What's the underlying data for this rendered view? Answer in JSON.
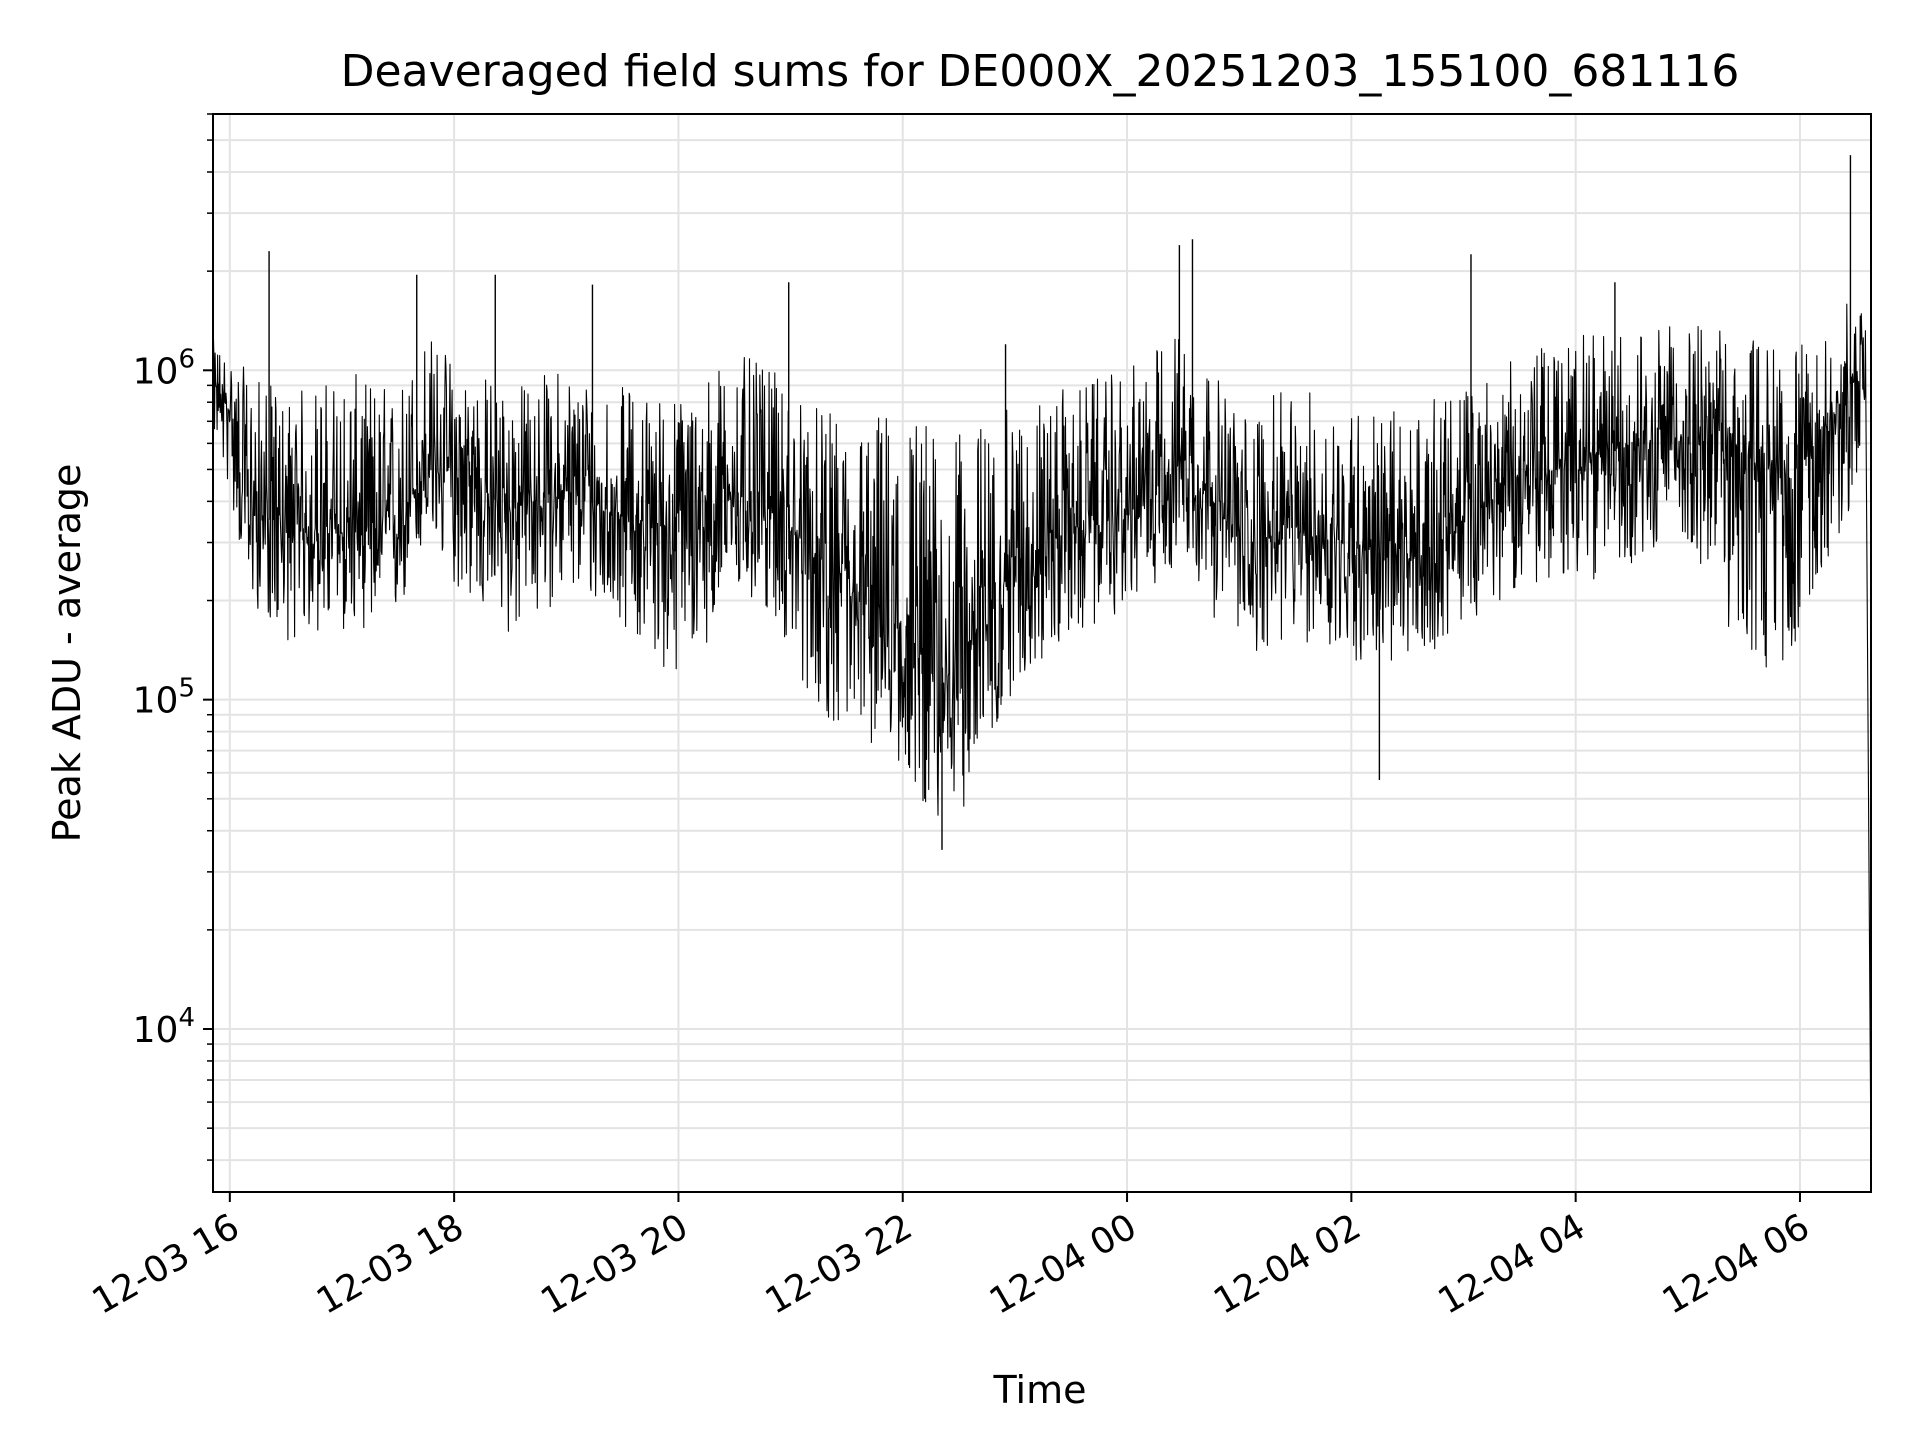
{
  "chart_data": {
    "type": "line",
    "title": "Deaveraged field sums for DE000X_20251203_155100_681116",
    "xlabel": "Time",
    "ylabel": "Peak ADU - average",
    "yscale": "log",
    "ylim": [
      3200,
      6000000
    ],
    "xlim": [
      "2025-12-03 15:51",
      "2025-12-04 06:38"
    ],
    "grid": true,
    "line_color": "#000000",
    "grid_color": "#e3e3e3",
    "x_ticks": [
      {
        "label": "12-03 16",
        "t": "2025-12-03 16:00"
      },
      {
        "label": "12-03 18",
        "t": "2025-12-03 18:00"
      },
      {
        "label": "12-03 20",
        "t": "2025-12-03 20:00"
      },
      {
        "label": "12-03 22",
        "t": "2025-12-03 22:00"
      },
      {
        "label": "12-04 00",
        "t": "2025-12-04 00:00"
      },
      {
        "label": "12-04 02",
        "t": "2025-12-04 02:00"
      },
      {
        "label": "12-04 04",
        "t": "2025-12-04 04:00"
      },
      {
        "label": "12-04 06",
        "t": "2025-12-04 06:00"
      }
    ],
    "y_ticks": [
      {
        "base": "10",
        "exp": "4",
        "value": 10000
      },
      {
        "base": "10",
        "exp": "5",
        "value": 100000
      },
      {
        "base": "10",
        "exp": "6",
        "value": 1000000
      }
    ],
    "series": [
      {
        "values_description_note": "",
        "x": [
          "2025-12-03 15:51",
          "2025-12-03 16:00",
          "2025-12-03 16:10",
          "2025-12-03 16:30",
          "2025-12-03 17:00",
          "2025-12-03 17:30",
          "2025-12-03 17:45",
          "2025-12-03 18:00",
          "2025-12-03 18:30",
          "2025-12-03 19:00",
          "2025-12-03 19:30",
          "2025-12-03 20:00",
          "2025-12-03 20:30",
          "2025-12-03 20:50",
          "2025-12-03 21:10",
          "2025-12-03 21:30",
          "2025-12-03 21:50",
          "2025-12-03 22:10",
          "2025-12-03 22:20",
          "2025-12-03 22:40",
          "2025-12-03 23:00",
          "2025-12-03 23:30",
          "2025-12-04 00:00",
          "2025-12-04 00:30",
          "2025-12-04 01:00",
          "2025-12-04 01:30",
          "2025-12-04 02:00",
          "2025-12-04 02:30",
          "2025-12-04 03:00",
          "2025-12-04 03:30",
          "2025-12-04 04:00",
          "2025-12-04 04:30",
          "2025-12-04 05:00",
          "2025-12-04 05:30",
          "2025-12-04 05:50",
          "2025-12-04 06:10",
          "2025-12-04 06:25",
          "2025-12-04 06:35",
          "2025-12-04 06:38"
        ],
        "median": [
          900000,
          750000,
          380000,
          330000,
          320000,
          330000,
          520000,
          480000,
          380000,
          430000,
          360000,
          330000,
          420000,
          380000,
          280000,
          200000,
          180000,
          130000,
          110000,
          160000,
          260000,
          330000,
          360000,
          560000,
          300000,
          320000,
          300000,
          260000,
          340000,
          480000,
          500000,
          600000,
          620000,
          560000,
          470000,
          580000,
          900000,
          950000,
          3800
        ],
        "low": [
          650000,
          420000,
          200000,
          150000,
          160000,
          170000,
          300000,
          220000,
          150000,
          210000,
          170000,
          110000,
          200000,
          180000,
          100000,
          75000,
          70000,
          50000,
          36000,
          55000,
          110000,
          150000,
          190000,
          260000,
          130000,
          150000,
          130000,
          120000,
          170000,
          220000,
          220000,
          260000,
          300000,
          130000,
          110000,
          240000,
          320000,
          650000,
          3800
        ],
        "high": [
          1250000,
          1100000,
          1000000,
          850000,
          1000000,
          900000,
          1350000,
          1100000,
          900000,
          1050000,
          900000,
          850000,
          1150000,
          1000000,
          800000,
          700000,
          780000,
          800000,
          600000,
          700000,
          780000,
          900000,
          1000000,
          1400000,
          750000,
          900000,
          800000,
          750000,
          900000,
          1100000,
          1300000,
          1300000,
          1400000,
          1300000,
          1200000,
          1200000,
          1600000,
          1500000,
          3800
        ],
        "spikes": [
          {
            "t": "2025-12-03 16:21",
            "v": 2300000
          },
          {
            "t": "2025-12-03 17:40",
            "v": 1950000
          },
          {
            "t": "2025-12-03 18:22",
            "v": 1950000
          },
          {
            "t": "2025-12-03 19:14",
            "v": 1820000
          },
          {
            "t": "2025-12-03 20:59",
            "v": 1850000
          },
          {
            "t": "2025-12-03 22:55",
            "v": 1200000
          },
          {
            "t": "2025-12-04 00:28",
            "v": 2400000
          },
          {
            "t": "2025-12-04 00:35",
            "v": 2500000
          },
          {
            "t": "2025-12-04 02:15",
            "v": 57000
          },
          {
            "t": "2025-12-04 03:04",
            "v": 2250000
          },
          {
            "t": "2025-12-04 04:21",
            "v": 1850000
          },
          {
            "t": "2025-12-04 06:27",
            "v": 4500000
          },
          {
            "t": "2025-12-03 22:21",
            "v": 35000
          }
        ]
      }
    ]
  }
}
